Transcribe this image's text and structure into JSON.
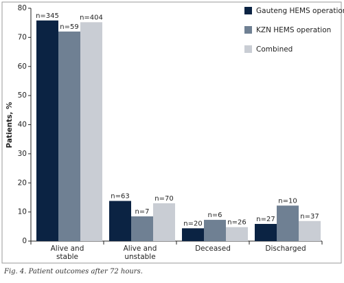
{
  "chart_data": {
    "type": "bar",
    "y_label": "Patients, %",
    "caption": "Fig. 4. Patient outcomes after 72 hours.",
    "categories": [
      "Alive and stable",
      "Alive and unstable",
      "Deceased",
      "Discharged"
    ],
    "series": [
      {
        "name": "Gauteng HEMS operation",
        "color": "#0b2343",
        "values": [
          75.8,
          13.8,
          4.4,
          5.9
        ],
        "annotations": [
          "n=345",
          "n=63",
          "n=20",
          "n=27"
        ]
      },
      {
        "name": "KZN HEMS operation",
        "color": "#6f8093",
        "values": [
          72.0,
          8.5,
          7.3,
          12.2
        ],
        "annotations": [
          "n=59",
          "n=7",
          "n=6",
          "n=10"
        ]
      },
      {
        "name": "Combined",
        "color": "#c9cdd4",
        "values": [
          75.2,
          13.0,
          4.8,
          6.9
        ],
        "annotations": [
          "n=404",
          "n=70",
          "n=26",
          "n=37"
        ]
      }
    ],
    "ylim": [
      0,
      80
    ],
    "yticks": [
      0,
      10,
      20,
      30,
      40,
      50,
      60,
      70,
      80
    ],
    "legend": "top-right"
  }
}
